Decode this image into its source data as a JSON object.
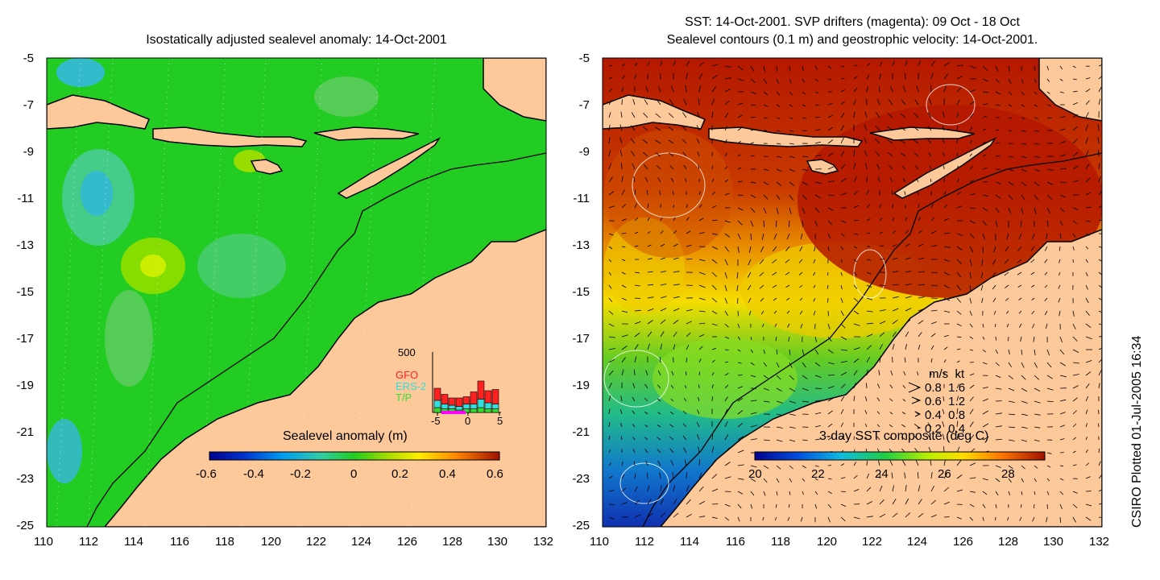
{
  "left_panel": {
    "title": "Isostatically adjusted sealevel anomaly: 14-Oct-2001",
    "colorbar_title": "Sealevel anomaly (m)",
    "colorbar_ticks": [
      "-0.6",
      "-0.4",
      "-0.2",
      "0",
      "0.2",
      "0.4",
      "0.6"
    ],
    "inset": {
      "y_max_label": "500",
      "x_ticks": [
        "-5",
        "0",
        "5"
      ],
      "legend": [
        {
          "label": "GFO",
          "color": "#ff2020"
        },
        {
          "label": "ERS-2",
          "color": "#33dddd"
        },
        {
          "label": "T/P",
          "color": "#33dd33"
        }
      ]
    }
  },
  "right_panel": {
    "title_line1": "SST: 14-Oct-2001. SVP drifters (magenta): 09 Oct - 18 Oct",
    "title_line2": "Sealevel contours (0.1 m) and geostrophic velocity: 14-Oct-2001.",
    "colorbar_title": "3-day SST composite (deg C)",
    "colorbar_ticks": [
      "20",
      "22",
      "24",
      "26",
      "28"
    ],
    "speed_legend": {
      "header": "m/s  kt",
      "rows": [
        "0.8  1.6",
        "0.6  1.2",
        "0.4  0.8",
        "0.2  0.4"
      ]
    }
  },
  "axes": {
    "y_ticks": [
      "-5",
      "-7",
      "-9",
      "-11",
      "-13",
      "-15",
      "-17",
      "-19",
      "-21",
      "-23",
      "-25"
    ],
    "x_ticks": [
      "110",
      "112",
      "114",
      "116",
      "118",
      "120",
      "122",
      "124",
      "126",
      "128",
      "130",
      "132"
    ]
  },
  "footer_vertical": "CSIRO Plotted 01-Jul-2005 16:34",
  "colors": {
    "land": "#fdc99b",
    "ocean_left": "#22cc22",
    "sst_hot": "#b41800",
    "sst_cold": "#1030b0"
  }
}
